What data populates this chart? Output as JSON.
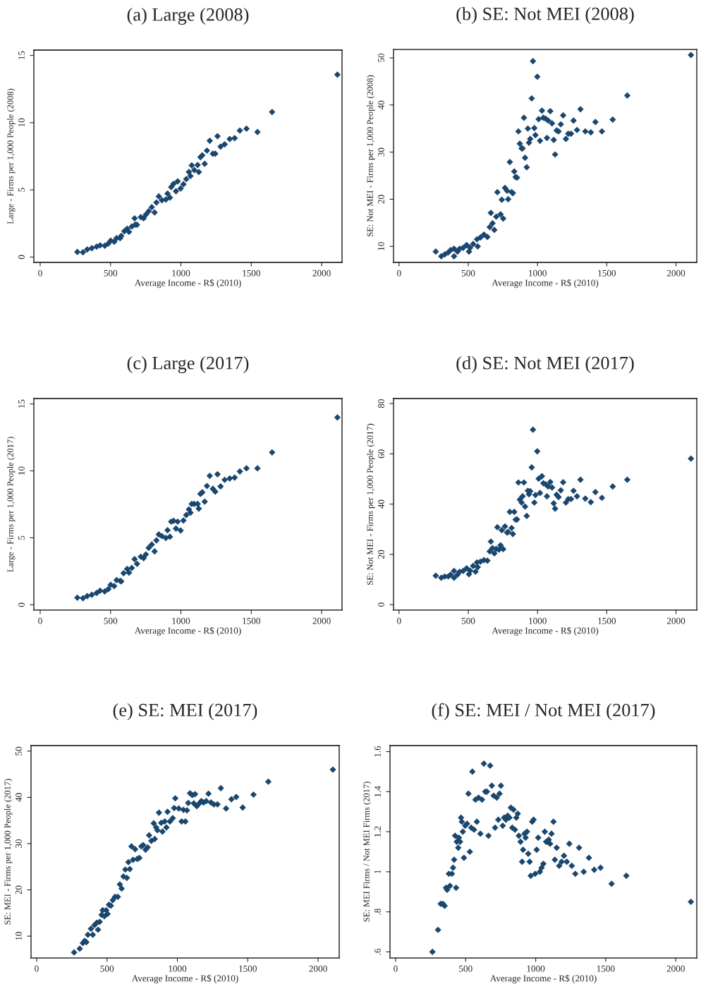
{
  "chart_data": [
    {
      "type": "scatter",
      "title": "(a) Large (2008)",
      "xlabel": "Average Income - R$ (2010)",
      "ylabel": "Large - Firms per 1,000 People (2008)",
      "color": "#1a476f",
      "marker": "diamond",
      "grid": false,
      "xlim": [
        -45,
        2145
      ],
      "xticks": [
        0,
        500,
        1000,
        1500,
        2000
      ],
      "ylim": [
        -0.4,
        15.4
      ],
      "yticks": [
        0,
        5,
        10,
        15
      ],
      "x": [
        264,
        304,
        334,
        367,
        401,
        426,
        459,
        484,
        501,
        526,
        543,
        568,
        576,
        598,
        618,
        631,
        651,
        676,
        688,
        671,
        715,
        735,
        751,
        771,
        793,
        813,
        826,
        843,
        865,
        893,
        905,
        922,
        931,
        948,
        965,
        977,
        998,
        1018,
        1038,
        1057,
        1068,
        1077,
        1095,
        1119,
        1127,
        1139,
        1152,
        1169,
        1185,
        1205,
        1227,
        1244,
        1260,
        1282,
        1311,
        1347,
        1382,
        1419,
        1466,
        1544,
        1648,
        2112
      ],
      "values": [
        0.38,
        0.35,
        0.56,
        0.66,
        0.77,
        0.87,
        0.84,
        1.0,
        1.22,
        1.14,
        1.4,
        1.4,
        1.57,
        1.92,
        2.1,
        1.87,
        2.27,
        2.41,
        2.4,
        2.88,
        2.97,
        2.88,
        3.15,
        3.41,
        3.71,
        3.32,
        4.06,
        4.51,
        4.23,
        4.28,
        4.72,
        4.42,
        5.21,
        5.45,
        4.9,
        5.63,
        5.1,
        5.42,
        5.8,
        6.33,
        6.03,
        6.82,
        6.47,
        6.85,
        6.33,
        7.43,
        7.57,
        6.94,
        7.92,
        8.65,
        7.69,
        7.69,
        8.99,
        8.22,
        8.39,
        8.78,
        8.85,
        9.41,
        9.55,
        9.3,
        10.79,
        13.57
      ]
    },
    {
      "type": "scatter",
      "title": "(b) SE: Not MEI (2008)",
      "xlabel": "Average Income - R$ (2010)",
      "ylabel": "SE: Not MEI - Firms per 1,000 People (2008)",
      "color": "#1a476f",
      "marker": "diamond",
      "grid": false,
      "xlim": [
        -40,
        2150
      ],
      "xticks": [
        0,
        500,
        1000,
        1500,
        2000
      ],
      "ylim": [
        6.6,
        51.8
      ],
      "yticks": [
        10,
        20,
        30,
        40,
        50
      ],
      "x": [
        265,
        305,
        330,
        355,
        372,
        397,
        397,
        422,
        438,
        463,
        488,
        505,
        513,
        535,
        568,
        563,
        588,
        613,
        638,
        655,
        663,
        675,
        688,
        702,
        710,
        733,
        742,
        752,
        765,
        780,
        788,
        813,
        822,
        800,
        832,
        842,
        852,
        862,
        872,
        885,
        892,
        902,
        910,
        922,
        930,
        938,
        947,
        958,
        967,
        977,
        985,
        998,
        1008,
        1018,
        1032,
        1042,
        1058,
        1068,
        1077,
        1092,
        1105,
        1117,
        1127,
        1138,
        1152,
        1168,
        1185,
        1205,
        1222,
        1242,
        1260,
        1285,
        1310,
        1345,
        1385,
        1418,
        1465,
        1543,
        1648,
        2108
      ],
      "values": [
        8.9,
        7.9,
        8.3,
        8.7,
        9.2,
        7.9,
        9.5,
        8.9,
        9.5,
        9.7,
        10.3,
        8.9,
        9.7,
        10.5,
        10.0,
        11.5,
        11.9,
        12.5,
        12.0,
        14.1,
        17.1,
        14.9,
        13.5,
        16.3,
        21.5,
        16.8,
        19.9,
        15.9,
        22.4,
        21.8,
        20.0,
        21.5,
        21.3,
        27.9,
        25.9,
        24.7,
        24.6,
        34.4,
        31.8,
        30.8,
        30.8,
        37.3,
        28.8,
        26.8,
        35.0,
        32.0,
        32.8,
        41.4,
        49.3,
        35.1,
        33.6,
        46.0,
        37.0,
        32.4,
        38.8,
        37.3,
        37.1,
        33.0,
        36.7,
        38.7,
        36.1,
        32.6,
        29.5,
        34.6,
        34.4,
        35.9,
        37.8,
        32.8,
        33.9,
        33.9,
        36.7,
        34.7,
        39.1,
        34.4,
        34.2,
        36.4,
        34.4,
        36.9,
        42.0,
        50.6
      ]
    },
    {
      "type": "scatter",
      "title": "(c) Large (2017)",
      "xlabel": "Average Income - R$ (2010)",
      "ylabel": "Large - Firms per 1,000 People (2017)",
      "color": "#1a476f",
      "marker": "diamond",
      "grid": false,
      "xlim": [
        -45,
        2145
      ],
      "xticks": [
        0,
        500,
        1000,
        1500,
        2000
      ],
      "ylim": [
        -0.4,
        15.4
      ],
      "yticks": [
        0,
        5,
        10,
        15
      ],
      "x": [
        264,
        304,
        334,
        367,
        401,
        426,
        459,
        484,
        501,
        526,
        543,
        568,
        576,
        593,
        618,
        631,
        651,
        671,
        688,
        715,
        735,
        751,
        771,
        793,
        813,
        826,
        843,
        865,
        893,
        905,
        922,
        931,
        948,
        965,
        977,
        998,
        1018,
        1038,
        1057,
        1068,
        1077,
        1095,
        1119,
        1127,
        1139,
        1152,
        1169,
        1185,
        1205,
        1227,
        1244,
        1260,
        1282,
        1311,
        1347,
        1382,
        1419,
        1466,
        1544,
        1648,
        2112
      ],
      "values": [
        0.53,
        0.49,
        0.65,
        0.75,
        0.88,
        1.05,
        1.0,
        1.17,
        1.49,
        1.4,
        1.84,
        1.79,
        1.75,
        2.36,
        2.68,
        2.4,
        2.75,
        3.41,
        3.06,
        3.59,
        3.48,
        3.76,
        4.25,
        4.5,
        3.99,
        4.81,
        5.25,
        5.13,
        4.99,
        5.57,
        5.08,
        6.21,
        6.27,
        5.69,
        6.21,
        5.55,
        6.3,
        6.7,
        7.12,
        6.88,
        7.53,
        7.53,
        7.53,
        7.18,
        8.28,
        8.4,
        7.7,
        8.87,
        9.63,
        8.66,
        8.45,
        9.75,
        8.84,
        9.33,
        9.43,
        9.5,
        9.96,
        10.19,
        10.19,
        11.38,
        13.99
      ]
    },
    {
      "type": "scatter",
      "title": "(d) SE: Not MEI (2017)",
      "xlabel": "Average Income - R$ (2010)",
      "ylabel": "SE: Not MEI - Firms per 1,000 People (2017)",
      "color": "#1a476f",
      "marker": "diamond",
      "grid": false,
      "xlim": [
        -40,
        2150
      ],
      "xticks": [
        0,
        500,
        1000,
        1500,
        2000
      ],
      "ylim": [
        -2.2,
        82
      ],
      "yticks": [
        0,
        20,
        40,
        60,
        80
      ],
      "x": [
        265,
        305,
        330,
        355,
        372,
        397,
        397,
        422,
        438,
        463,
        488,
        505,
        513,
        535,
        552,
        568,
        563,
        588,
        613,
        638,
        655,
        663,
        675,
        688,
        702,
        710,
        722,
        733,
        742,
        752,
        765,
        780,
        788,
        813,
        822,
        800,
        832,
        842,
        852,
        862,
        872,
        885,
        892,
        902,
        910,
        922,
        930,
        938,
        947,
        958,
        967,
        977,
        985,
        998,
        1008,
        1018,
        1032,
        1042,
        1058,
        1068,
        1077,
        1092,
        1105,
        1117,
        1127,
        1138,
        1152,
        1168,
        1185,
        1205,
        1222,
        1242,
        1260,
        1285,
        1310,
        1345,
        1385,
        1418,
        1465,
        1543,
        1648,
        2108
      ],
      "values": [
        11.5,
        10.7,
        11.2,
        11.2,
        11.9,
        10.7,
        13.4,
        11.9,
        13.1,
        13.4,
        14.5,
        12.1,
        13.5,
        15.4,
        13.1,
        14.9,
        16.8,
        17.1,
        17.7,
        17.5,
        21.2,
        25.1,
        22.5,
        20.4,
        22.2,
        30.8,
        21.9,
        23.6,
        29.6,
        22.1,
        31.1,
        28.7,
        28.9,
        30.5,
        28.1,
        36.9,
        36.9,
        33.8,
        33.9,
        48.6,
        41.8,
        40.6,
        43.1,
        48.6,
        39.0,
        35.3,
        45.3,
        43.9,
        45.1,
        54.6,
        69.6,
        40.6,
        43.6,
        61.0,
        50.1,
        44.4,
        51.1,
        48.3,
        47.9,
        43.1,
        47.0,
        48.8,
        46.6,
        40.3,
        38.2,
        43.7,
        42.8,
        45.5,
        48.7,
        40.6,
        42.0,
        42.0,
        45.3,
        43.1,
        49.7,
        42.2,
        40.8,
        44.8,
        42.5,
        47.0,
        49.7,
        58.1
      ]
    },
    {
      "type": "scatter",
      "title": "(e) SE: MEI (2017)",
      "xlabel": "Average Income - R$ (2010)",
      "ylabel": "SE: MEI - Firms per 1,000 People (2017)",
      "color": "#1a476f",
      "marker": "diamond",
      "grid": false,
      "xlim": [
        -40,
        2150
      ],
      "xticks": [
        0,
        500,
        1000,
        1500,
        2000
      ],
      "ylim": [
        5.3,
        51.2
      ],
      "yticks": [
        10,
        20,
        30,
        40,
        50
      ],
      "x": [
        266,
        306,
        328,
        341,
        353,
        364,
        386,
        399,
        411,
        427,
        436,
        448,
        461,
        469,
        481,
        494,
        504,
        514,
        527,
        541,
        557,
        577,
        591,
        604,
        617,
        630,
        641,
        652,
        662,
        674,
        685,
        700,
        715,
        730,
        744,
        757,
        774,
        789,
        799,
        815,
        839,
        832,
        849,
        858,
        869,
        885,
        894,
        910,
        922,
        930,
        947,
        967,
        977,
        985,
        1010,
        1030,
        1043,
        1057,
        1068,
        1077,
        1090,
        1106,
        1117,
        1126,
        1138,
        1156,
        1170,
        1186,
        1205,
        1221,
        1239,
        1259,
        1285,
        1309,
        1346,
        1384,
        1418,
        1464,
        1541,
        1646,
        2105
      ],
      "values": [
        6.5,
        7.3,
        8.5,
        9.0,
        8.7,
        10.3,
        11.6,
        10.3,
        12.4,
        12.9,
        11.4,
        13.1,
        14.6,
        15.6,
        14.3,
        15.6,
        14.8,
        16.8,
        16.6,
        17.8,
        18.5,
        18.5,
        21.2,
        20.3,
        22.9,
        24.4,
        22.6,
        26.0,
        24.5,
        29.4,
        26.5,
        28.8,
        26.7,
        26.9,
        29.4,
        29.7,
        28.7,
        29.2,
        31.8,
        30.6,
        31.0,
        34.4,
        33.5,
        32.9,
        36.7,
        34.5,
        32.6,
        34.8,
        33.5,
        36.9,
        34.8,
        35.5,
        37.7,
        39.8,
        37.6,
        34.8,
        37.3,
        34.8,
        37.2,
        38.8,
        40.9,
        40.5,
        38.7,
        40.7,
        38.1,
        38.7,
        39.2,
        38.9,
        39.2,
        40.8,
        38.9,
        38.5,
        38.5,
        42.0,
        37.6,
        39.6,
        40.1,
        37.8,
        40.6,
        43.4,
        46.0
      ]
    },
    {
      "type": "scatter",
      "title": "(f) SE: MEI / Not MEI (2017)",
      "xlabel": "Average Income - R$ (2010)",
      "ylabel": "SE: MEI Firms / Not MEI Firms (2017)",
      "color": "#1a476f",
      "marker": "diamond",
      "grid": false,
      "xlim": [
        -40,
        2150
      ],
      "xticks": [
        0,
        500,
        1000,
        1500,
        2000
      ],
      "ylim": [
        0.57,
        1.63
      ],
      "yticks": [
        {
          "value": 0.6,
          "label": ".6"
        },
        {
          "value": 0.8,
          "label": ".8"
        },
        1,
        1.2,
        1.4,
        1.6
      ],
      "x": [
        263,
        303,
        322,
        338,
        350,
        360,
        368,
        380,
        388,
        402,
        410,
        418,
        425,
        432,
        437,
        447,
        452,
        460,
        467,
        473,
        480,
        488,
        497,
        510,
        520,
        530,
        540,
        548,
        560,
        570,
        580,
        592,
        605,
        617,
        630,
        640,
        652,
        663,
        675,
        687,
        700,
        710,
        722,
        733,
        742,
        752,
        765,
        775,
        788,
        800,
        813,
        823,
        833,
        842,
        852,
        862,
        872,
        880,
        892,
        903,
        910,
        920,
        928,
        938,
        947,
        957,
        965,
        975,
        985,
        997,
        1007,
        1018,
        1030,
        1042,
        1055,
        1065,
        1075,
        1085,
        1093,
        1103,
        1113,
        1127,
        1137,
        1150,
        1168,
        1185,
        1202,
        1222,
        1240,
        1258,
        1283,
        1310,
        1343,
        1380,
        1418,
        1463,
        1542,
        1647,
        2108
      ],
      "values": [
        0.6,
        0.71,
        0.84,
        0.84,
        0.83,
        0.92,
        0.91,
        0.99,
        0.93,
        0.99,
        1.02,
        1.06,
        1.18,
        0.92,
        1.15,
        1.12,
        1.17,
        1.15,
        1.27,
        1.25,
        1.2,
        1.07,
        1.23,
        1.24,
        1.39,
        1.1,
        1.22,
        1.5,
        1.21,
        1.36,
        1.25,
        1.37,
        1.19,
        1.36,
        1.54,
        1.4,
        1.4,
        1.18,
        1.53,
        1.43,
        1.38,
        1.22,
        1.37,
        1.26,
        1.39,
        1.43,
        1.23,
        1.27,
        1.26,
        1.28,
        1.27,
        1.32,
        1.22,
        1.31,
        1.21,
        1.27,
        1.29,
        1.18,
        1.15,
        1.05,
        1.11,
        1.19,
        1.17,
        1.2,
        1.09,
        1.05,
        0.98,
        1.25,
        1.26,
        0.99,
        1.11,
        1.17,
        1.0,
        1.02,
        1.04,
        1.2,
        1.15,
        1.15,
        1.16,
        1.14,
        1.19,
        1.25,
        1.06,
        1.12,
        1.03,
        1.05,
        1.08,
        1.05,
        1.14,
        1.03,
        0.99,
        1.12,
        1.0,
        1.07,
        1.01,
        1.02,
        0.94,
        0.98,
        0.85
      ]
    }
  ]
}
